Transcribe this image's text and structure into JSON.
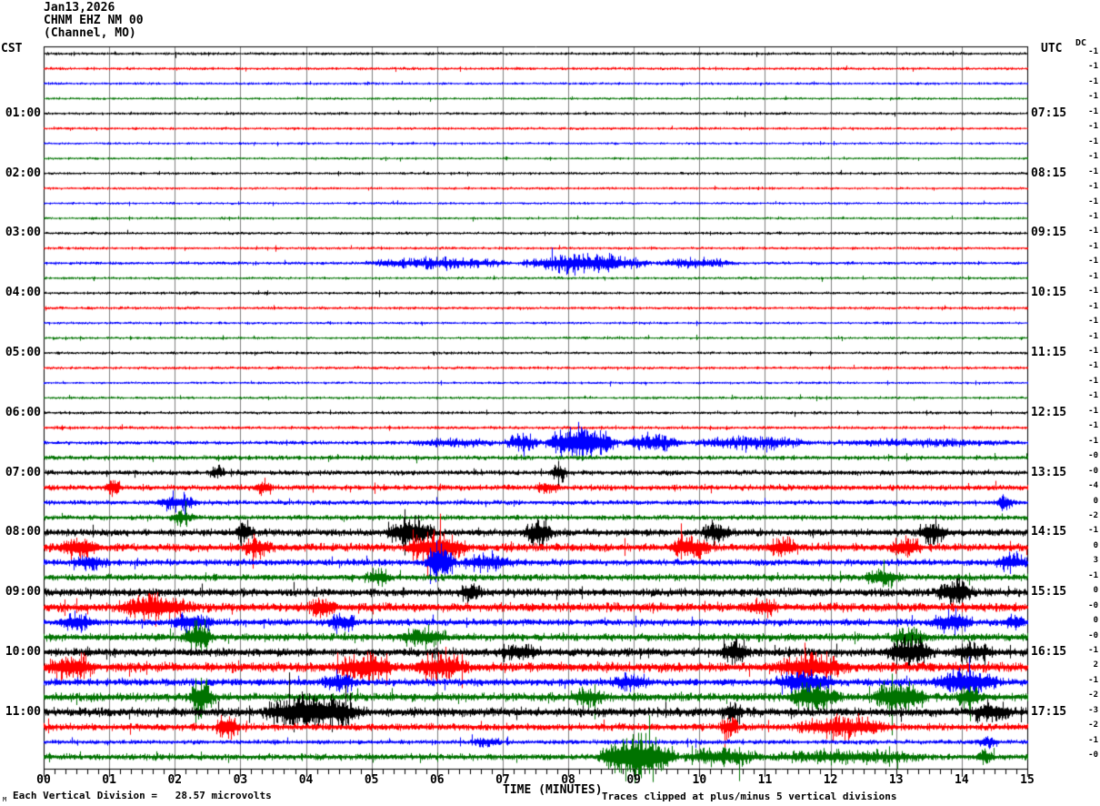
{
  "header": {
    "date": "Jan13,2026",
    "station": "CHNM EHZ NM 00",
    "location": "(Channel, MO)"
  },
  "axes": {
    "left_timezone": "CST",
    "right_timezone": "UTC",
    "dc_column_label": "DC",
    "x_title": "TIME (MINUTES)",
    "x_tick_labels": [
      "00",
      "01",
      "02",
      "03",
      "04",
      "05",
      "06",
      "07",
      "08",
      "09",
      "10",
      "11",
      "12",
      "13",
      "14",
      "15"
    ]
  },
  "footer": {
    "scale_note": "Each Vertical Division =   28.57 microvolts",
    "clip_note": "Traces clipped at plus/minus 5 vertical divisions",
    "watermark": "M"
  },
  "chart_data": {
    "type": "line",
    "subtype": "helicorder-seismogram",
    "title": "CHNM EHZ NM 00 (Channel, MO) Jan13,2026",
    "xlabel": "TIME (MINUTES)",
    "x_range": [
      0,
      15
    ],
    "rows_per_hour": 4,
    "minutes_per_row": 15,
    "grid": true,
    "colors": {
      "black": "#000000",
      "red": "#ff0000",
      "blue": "#0000ff",
      "green": "#007300",
      "grid": "#808080",
      "frame": "#000000"
    },
    "color_cycle": [
      "black",
      "red",
      "blue",
      "green"
    ],
    "hour_labels": [
      {
        "row": 4,
        "cst": "01:00",
        "utc": "07:15"
      },
      {
        "row": 8,
        "cst": "02:00",
        "utc": "08:15"
      },
      {
        "row": 12,
        "cst": "03:00",
        "utc": "09:15"
      },
      {
        "row": 16,
        "cst": "04:00",
        "utc": "10:15"
      },
      {
        "row": 20,
        "cst": "05:00",
        "utc": "11:15"
      },
      {
        "row": 24,
        "cst": "06:00",
        "utc": "12:15"
      },
      {
        "row": 28,
        "cst": "07:00",
        "utc": "13:15"
      },
      {
        "row": 32,
        "cst": "08:00",
        "utc": "14:15"
      },
      {
        "row": 36,
        "cst": "09:00",
        "utc": "15:15"
      },
      {
        "row": 40,
        "cst": "10:00",
        "utc": "16:15"
      },
      {
        "row": 44,
        "cst": "11:00",
        "utc": "17:15"
      }
    ],
    "dc_values": [
      "-1",
      "-1",
      "-1",
      "-1",
      "-1",
      "-1",
      "-1",
      "-1",
      "-1",
      "-1",
      "-1",
      "-1",
      "-1",
      "-1",
      "-1",
      "-1",
      "-1",
      "-1",
      "-1",
      "-1",
      "-1",
      "-1",
      "-1",
      "-1",
      "-1",
      "-1",
      "-1",
      "-0",
      "-0",
      "-4",
      "0",
      "-2",
      "-1",
      "0",
      "3",
      "-1",
      "0",
      "-0",
      "0",
      "-0",
      "-1",
      "2",
      "-1",
      "-2",
      "-3",
      "-2",
      "-1",
      "-0"
    ],
    "rows": [
      {
        "amp": 1.8,
        "events": []
      },
      {
        "amp": 1.8,
        "events": []
      },
      {
        "amp": 1.6,
        "events": []
      },
      {
        "amp": 1.5,
        "events": []
      },
      {
        "amp": 1.7,
        "events": []
      },
      {
        "amp": 1.7,
        "events": []
      },
      {
        "amp": 1.5,
        "events": []
      },
      {
        "amp": 1.5,
        "events": []
      },
      {
        "amp": 1.7,
        "events": []
      },
      {
        "amp": 1.6,
        "events": []
      },
      {
        "amp": 1.5,
        "events": []
      },
      {
        "amp": 1.5,
        "events": []
      },
      {
        "amp": 1.8,
        "events": []
      },
      {
        "amp": 1.7,
        "events": []
      },
      {
        "amp": 2.0,
        "events": [
          [
            4.8,
            7.2,
            6
          ],
          [
            7.2,
            9.3,
            11
          ],
          [
            9.3,
            10.6,
            5
          ]
        ]
      },
      {
        "amp": 1.6,
        "events": []
      },
      {
        "amp": 1.8,
        "events": []
      },
      {
        "amp": 1.8,
        "events": []
      },
      {
        "amp": 1.6,
        "events": []
      },
      {
        "amp": 1.6,
        "events": []
      },
      {
        "amp": 1.8,
        "events": []
      },
      {
        "amp": 1.8,
        "events": []
      },
      {
        "amp": 1.6,
        "events": []
      },
      {
        "amp": 1.6,
        "events": []
      },
      {
        "amp": 1.9,
        "events": []
      },
      {
        "amp": 2.0,
        "events": []
      },
      {
        "amp": 2.4,
        "events": [
          [
            5.5,
            7.0,
            4
          ],
          [
            7.0,
            7.6,
            10
          ],
          [
            7.6,
            8.8,
            22
          ],
          [
            8.8,
            9.8,
            10
          ],
          [
            9.8,
            11.8,
            7
          ],
          [
            11.8,
            15,
            3
          ]
        ]
      },
      {
        "amp": 2.8,
        "events": []
      },
      {
        "amp": 3.2,
        "events": [
          [
            2.5,
            2.8,
            6
          ],
          [
            7.7,
            8.0,
            10
          ]
        ]
      },
      {
        "amp": 3.4,
        "events": [
          [
            0.9,
            1.2,
            8
          ],
          [
            3.2,
            3.5,
            8
          ],
          [
            7.5,
            7.9,
            6
          ]
        ]
      },
      {
        "amp": 3.0,
        "events": [
          [
            1.7,
            2.4,
            9
          ],
          [
            14.5,
            14.8,
            8
          ]
        ]
      },
      {
        "amp": 3.2,
        "events": [
          [
            1.9,
            2.3,
            8
          ]
        ]
      },
      {
        "amp": 4.5,
        "events": [
          [
            2.9,
            3.2,
            12
          ],
          [
            5.2,
            6.0,
            18
          ],
          [
            7.3,
            7.8,
            16
          ],
          [
            10.0,
            10.5,
            12
          ],
          [
            13.3,
            13.8,
            14
          ]
        ]
      },
      {
        "amp": 5.0,
        "events": [
          [
            0.2,
            0.9,
            12
          ],
          [
            3.0,
            3.5,
            10
          ],
          [
            5.5,
            6.5,
            16
          ],
          [
            9.5,
            10.2,
            12
          ],
          [
            11.0,
            11.5,
            10
          ],
          [
            12.9,
            13.4,
            10
          ]
        ]
      },
      {
        "amp": 4.0,
        "events": [
          [
            0.4,
            1.0,
            8
          ],
          [
            5.8,
            6.3,
            20
          ],
          [
            6.3,
            7.2,
            9
          ],
          [
            14.5,
            15,
            10
          ]
        ]
      },
      {
        "amp": 4.2,
        "events": [
          [
            4.9,
            5.3,
            9
          ],
          [
            12.5,
            13.1,
            9
          ]
        ]
      },
      {
        "amp": 5.0,
        "events": [
          [
            6.3,
            6.7,
            10
          ],
          [
            13.6,
            14.2,
            14
          ]
        ]
      },
      {
        "amp": 5.5,
        "events": [
          [
            1.1,
            2.3,
            14
          ],
          [
            4.0,
            4.5,
            9
          ],
          [
            10.7,
            11.2,
            8
          ]
        ]
      },
      {
        "amp": 4.2,
        "events": [
          [
            0.2,
            0.8,
            9
          ],
          [
            1.9,
            2.6,
            11
          ],
          [
            4.3,
            4.8,
            9
          ],
          [
            13.5,
            14.2,
            12
          ],
          [
            14.6,
            15,
            9
          ]
        ]
      },
      {
        "amp": 4.8,
        "events": [
          [
            2.1,
            2.6,
            16
          ],
          [
            5.4,
            6.2,
            10
          ],
          [
            12.9,
            13.5,
            9
          ]
        ]
      },
      {
        "amp": 5.2,
        "events": [
          [
            6.9,
            7.6,
            9
          ],
          [
            10.3,
            10.8,
            12
          ],
          [
            12.8,
            13.6,
            16
          ],
          [
            13.8,
            14.5,
            10
          ]
        ]
      },
      {
        "amp": 6.0,
        "events": [
          [
            0.0,
            0.8,
            12
          ],
          [
            4.4,
            5.4,
            14
          ],
          [
            5.6,
            6.5,
            12
          ],
          [
            11.1,
            12.3,
            14
          ]
        ]
      },
      {
        "amp": 4.5,
        "events": [
          [
            4.2,
            4.8,
            9
          ],
          [
            8.6,
            9.3,
            8
          ],
          [
            11.1,
            12.1,
            13
          ],
          [
            13.5,
            14.6,
            14
          ]
        ]
      },
      {
        "amp": 5.2,
        "events": [
          [
            2.2,
            2.6,
            22
          ],
          [
            8.0,
            8.6,
            10
          ],
          [
            11.3,
            12.2,
            14
          ],
          [
            12.6,
            13.5,
            18
          ],
          [
            13.9,
            14.3,
            12
          ]
        ]
      },
      {
        "amp": 5.5,
        "events": [
          [
            3.3,
            4.9,
            20
          ],
          [
            10.3,
            10.7,
            9
          ],
          [
            14.1,
            14.8,
            10
          ]
        ]
      },
      {
        "amp": 4.5,
        "events": [
          [
            2.6,
            3.0,
            14
          ],
          [
            10.3,
            10.6,
            12
          ],
          [
            11.4,
            13.0,
            11
          ]
        ]
      },
      {
        "amp": 2.8,
        "events": [
          [
            6.5,
            7.0,
            5
          ],
          [
            14.2,
            14.6,
            6
          ]
        ]
      },
      {
        "amp": 4.0,
        "events": [
          [
            8.4,
            9.7,
            28
          ],
          [
            9.7,
            11.0,
            9
          ],
          [
            11.0,
            13.5,
            6
          ],
          [
            14.2,
            14.5,
            9
          ]
        ]
      }
    ],
    "clip_divisions": 5,
    "vertical_division_microvolts": 28.57,
    "layout": {
      "plot_left": 48,
      "plot_right": 1130,
      "top_y": 51,
      "row0_y": 59,
      "row_spacing": 16.45,
      "axis_y": 845,
      "n_rows": 48
    }
  }
}
